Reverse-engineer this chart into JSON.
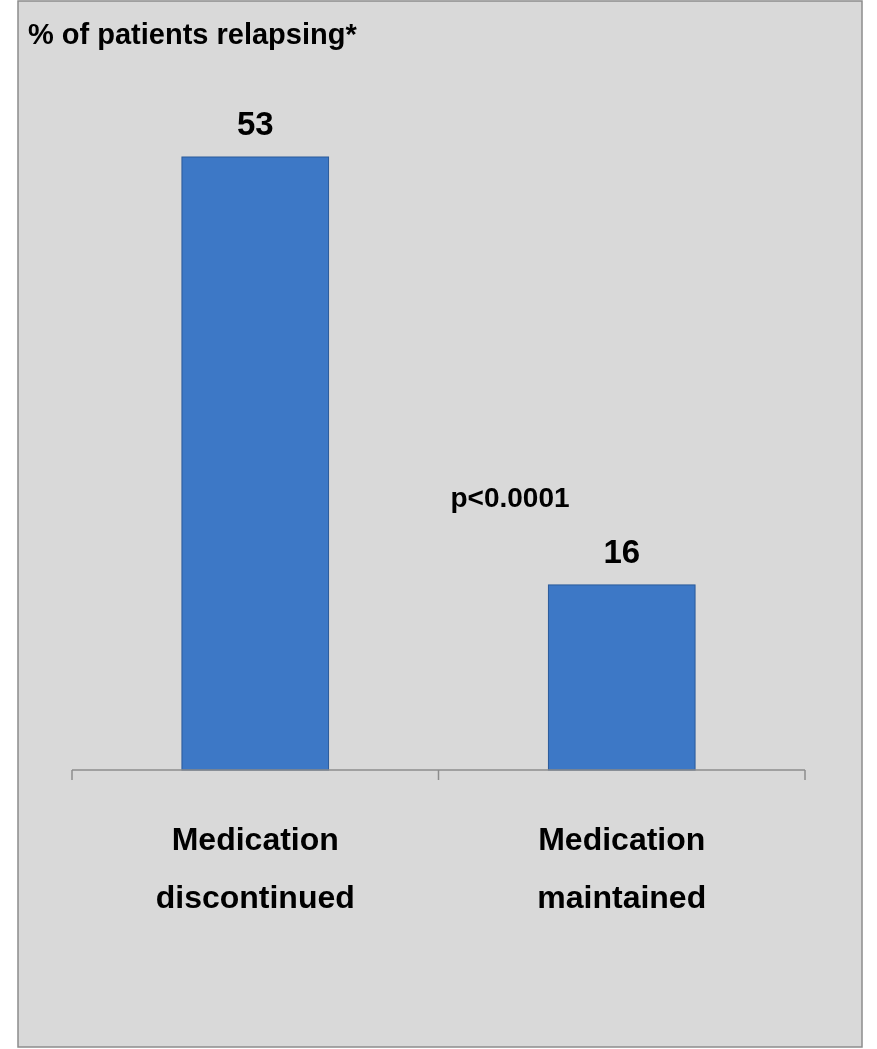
{
  "chart_data": {
    "type": "bar",
    "title": "% of patients relapsing*",
    "categories": [
      "Medication discontinued",
      "Medication maintained"
    ],
    "values": [
      53,
      16
    ],
    "color": "#3d78c6",
    "data_labels": true,
    "annotations": [
      "p<0.0001"
    ]
  }
}
